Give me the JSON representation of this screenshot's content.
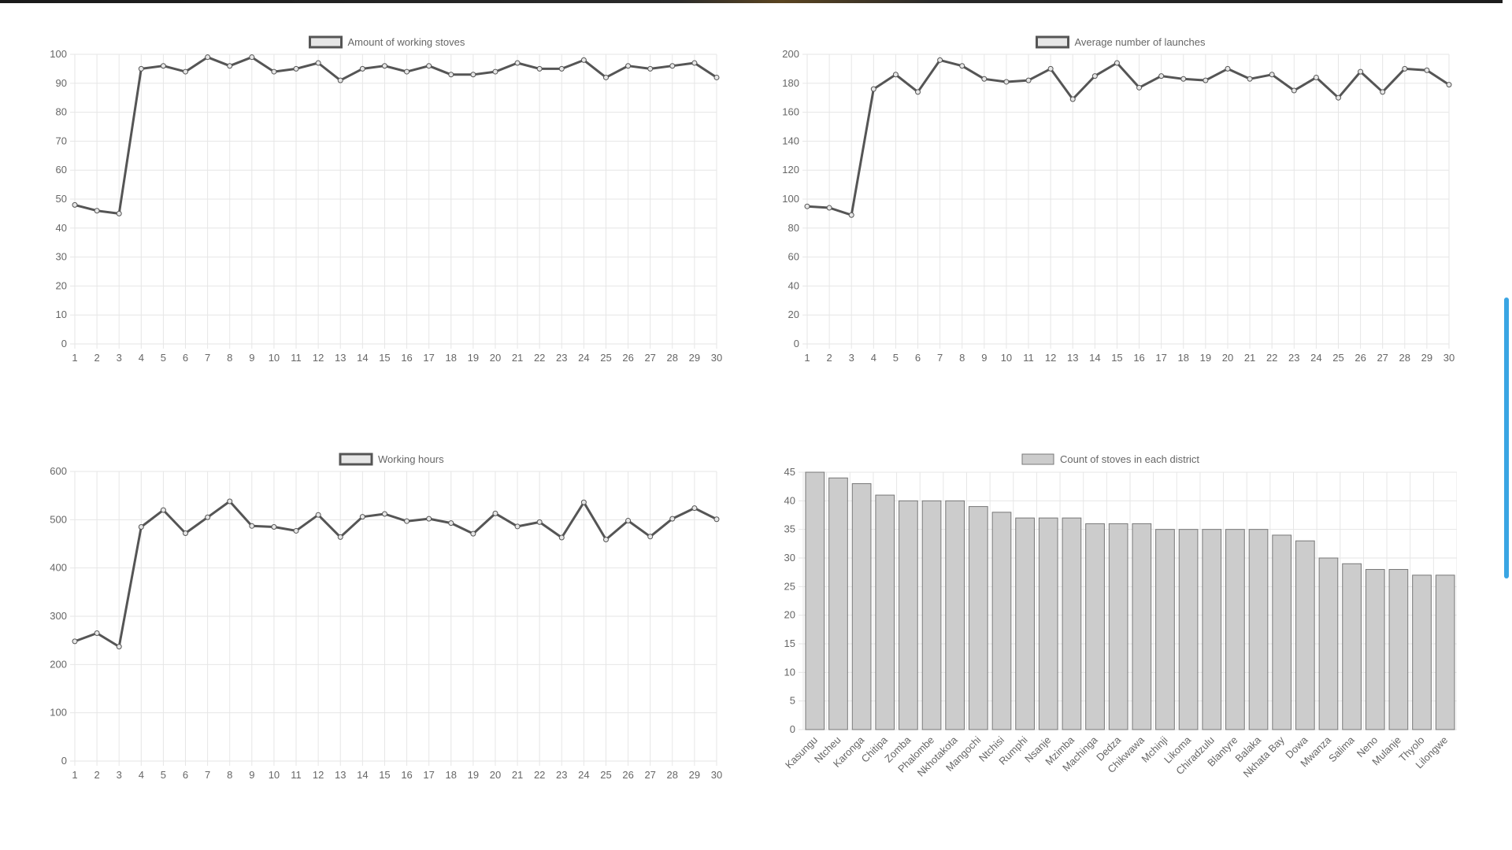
{
  "colors": {
    "line": "#555555",
    "fill": "#e6e6e6",
    "bar_fill": "#cccccc",
    "bar_stroke": "#777777",
    "grid": "#e6e6e6",
    "tick": "#666666",
    "scrollbar": "#3aa5e3"
  },
  "chart_data": [
    {
      "type": "line",
      "title": "",
      "legend": "Amount of working stoves",
      "legend_position": "top",
      "grid": true,
      "x": [
        1,
        2,
        3,
        4,
        5,
        6,
        7,
        8,
        9,
        10,
        11,
        12,
        13,
        14,
        15,
        16,
        17,
        18,
        19,
        20,
        21,
        22,
        23,
        24,
        25,
        26,
        27,
        28,
        29,
        30
      ],
      "y": [
        48,
        46,
        45,
        95,
        96,
        94,
        99,
        96,
        99,
        94,
        95,
        97,
        91,
        95,
        96,
        94,
        96,
        93,
        93,
        94,
        97,
        95,
        95,
        98,
        92,
        96,
        95,
        96,
        97,
        92
      ],
      "ylim": [
        0,
        100
      ],
      "ystep": 10
    },
    {
      "type": "line",
      "title": "",
      "legend": "Average number of launches",
      "legend_position": "top",
      "grid": true,
      "x": [
        1,
        2,
        3,
        4,
        5,
        6,
        7,
        8,
        9,
        10,
        11,
        12,
        13,
        14,
        15,
        16,
        17,
        18,
        19,
        20,
        21,
        22,
        23,
        24,
        25,
        26,
        27,
        28,
        29,
        30
      ],
      "y": [
        95,
        94,
        89,
        176,
        186,
        174,
        196,
        192,
        183,
        181,
        182,
        190,
        169,
        185,
        194,
        177,
        185,
        183,
        182,
        190,
        183,
        186,
        175,
        184,
        170,
        188,
        174,
        190,
        189,
        179
      ],
      "ylim": [
        0,
        200
      ],
      "ystep": 20
    },
    {
      "type": "line",
      "title": "",
      "legend": "Working hours",
      "legend_position": "top",
      "grid": true,
      "x": [
        1,
        2,
        3,
        4,
        5,
        6,
        7,
        8,
        9,
        10,
        11,
        12,
        13,
        14,
        15,
        16,
        17,
        18,
        19,
        20,
        21,
        22,
        23,
        24,
        25,
        26,
        27,
        28,
        29,
        30
      ],
      "y": [
        248,
        265,
        237,
        485,
        520,
        472,
        505,
        538,
        487,
        485,
        477,
        510,
        464,
        506,
        512,
        497,
        502,
        493,
        471,
        513,
        486,
        495,
        463,
        536,
        459,
        498,
        465,
        502,
        524,
        501
      ],
      "ylim": [
        0,
        600
      ],
      "ystep": 100
    },
    {
      "type": "bar",
      "title": "",
      "legend": "Count of stoves in each district",
      "legend_position": "top",
      "grid": true,
      "categories": [
        "Kasungu",
        "Ntcheu",
        "Karonga",
        "Chitipa",
        "Zomba",
        "Phalombe",
        "Nkhotakota",
        "Mangochi",
        "Ntchisi",
        "Rumphi",
        "Nsanje",
        "Mzimba",
        "Machinga",
        "Dedza",
        "Chikwawa",
        "Mchinji",
        "Likoma",
        "Chiradzulu",
        "Blantyre",
        "Balaka",
        "Nkhata Bay",
        "Dowa",
        "Mwanza",
        "Salima",
        "Neno",
        "Mulanje",
        "Thyolo",
        "Lilongwe"
      ],
      "values": [
        45,
        44,
        43,
        41,
        40,
        40,
        40,
        39,
        38,
        37,
        37,
        37,
        36,
        36,
        36,
        35,
        35,
        35,
        35,
        35,
        34,
        33,
        30,
        29,
        28,
        28,
        27,
        27
      ],
      "ylim": [
        0,
        45
      ],
      "ystep": 5
    }
  ]
}
